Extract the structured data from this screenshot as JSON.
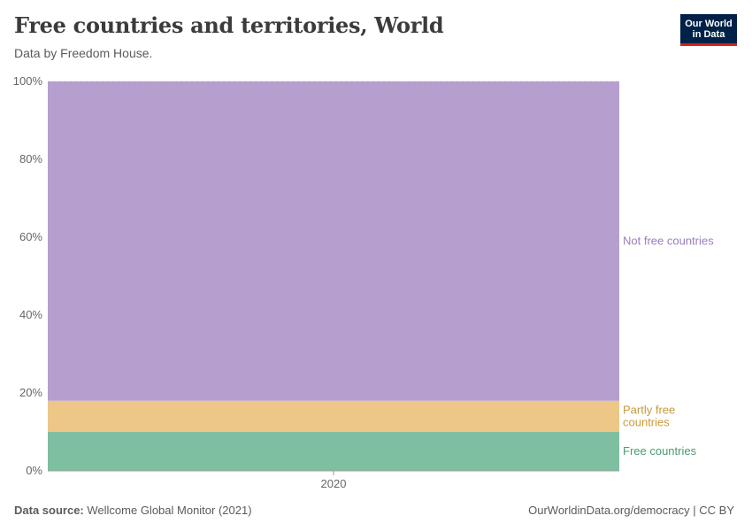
{
  "header": {
    "title": "Free countries and territories, World",
    "subtitle": "Data by Freedom House.",
    "logo_line1": "Our World",
    "logo_line2": "in Data"
  },
  "footer": {
    "source_label": "Data source:",
    "source_value": "Wellcome Global Monitor (2021)",
    "link": "OurWorldinData.org/democracy | CC BY"
  },
  "colors": {
    "free": "#7ebfa1",
    "partly_free": "#ecc787",
    "not_free": "#b69fce",
    "free_label": "#4b9a70",
    "partly_free_label": "#c99a3a",
    "not_free_label": "#9a7ebd",
    "axis_text": "#666666",
    "grid": "#dddddd"
  },
  "chart_data": {
    "type": "area",
    "stacked": true,
    "title": "Free countries and territories, World",
    "subtitle": "Data by Freedom House.",
    "x": [
      "2020"
    ],
    "y_ticks": [
      "0%",
      "20%",
      "40%",
      "60%",
      "80%",
      "100%"
    ],
    "ylim": [
      0,
      100
    ],
    "series": [
      {
        "name": "Free countries",
        "values": [
          10
        ],
        "color": "#7ebfa1"
      },
      {
        "name": "Partly free countries",
        "values": [
          8
        ],
        "color": "#ecc787"
      },
      {
        "name": "Not free countries",
        "values": [
          82
        ],
        "color": "#b69fce"
      }
    ],
    "grid": true,
    "legend": "right"
  }
}
